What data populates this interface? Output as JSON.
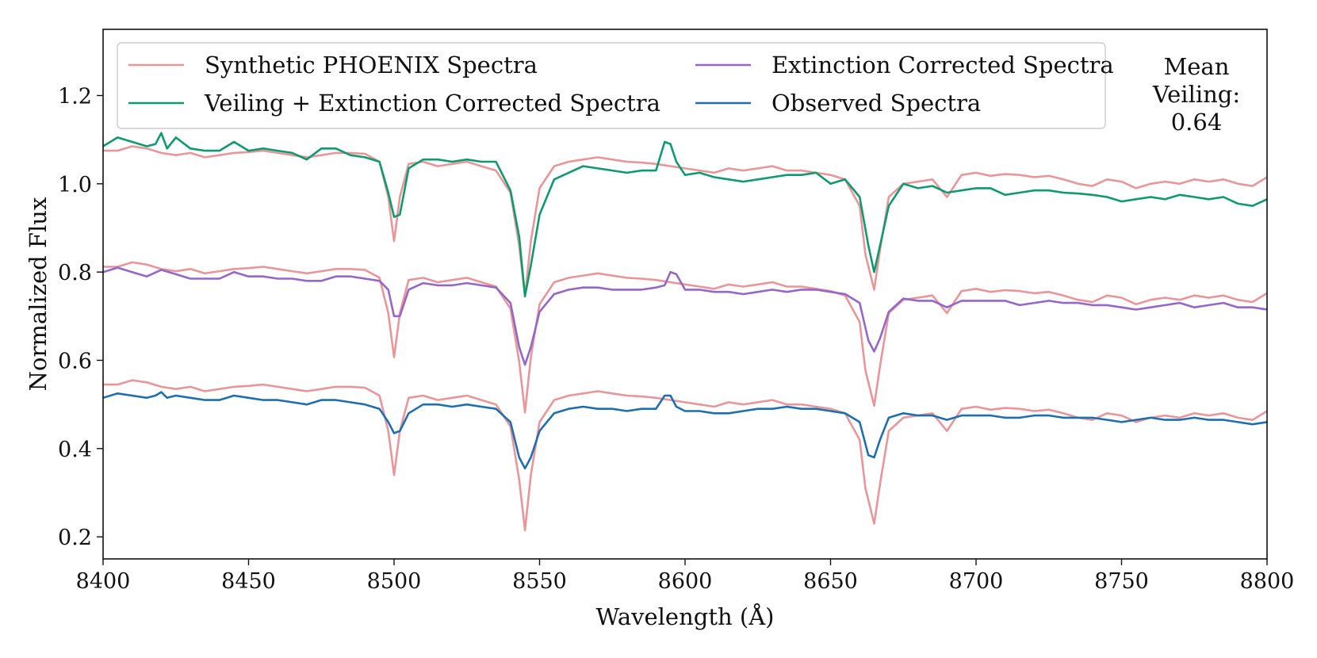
{
  "chart_data": {
    "type": "line",
    "title": "",
    "xlabel": "Wavelength (Å)",
    "ylabel": "Normalized Flux",
    "xlim": [
      8400,
      8800
    ],
    "ylim": [
      0.15,
      1.35
    ],
    "xticks": [
      {
        "value": 8400,
        "label": "8400"
      },
      {
        "value": 8450,
        "label": "8450"
      },
      {
        "value": 8500,
        "label": "8500"
      },
      {
        "value": 8550,
        "label": "8550"
      },
      {
        "value": 8600,
        "label": "8600"
      },
      {
        "value": 8650,
        "label": "8650"
      },
      {
        "value": 8700,
        "label": "8700"
      },
      {
        "value": 8750,
        "label": "8750"
      },
      {
        "value": 8800,
        "label": "8800"
      }
    ],
    "yticks": [
      {
        "value": 0.2,
        "label": "0.2"
      },
      {
        "value": 0.4,
        "label": "0.4"
      },
      {
        "value": 0.6,
        "label": "0.6"
      },
      {
        "value": 0.8,
        "label": "0.8"
      },
      {
        "value": 1.0,
        "label": "1.0"
      },
      {
        "value": 1.2,
        "label": "1.2"
      }
    ],
    "grid": false,
    "legend_position": "top-left",
    "annotation": {
      "line1": "Mean",
      "line2": "Veiling:",
      "line3": "0.64"
    },
    "template": {
      "x": [
        8400,
        8405,
        8410,
        8415,
        8420,
        8425,
        8430,
        8435,
        8440,
        8445,
        8450,
        8455,
        8460,
        8465,
        8470,
        8475,
        8480,
        8485,
        8490,
        8495,
        8498,
        8500,
        8502,
        8505,
        8510,
        8515,
        8520,
        8525,
        8530,
        8535,
        8540,
        8543,
        8545,
        8547,
        8550,
        8555,
        8560,
        8565,
        8570,
        8575,
        8580,
        8585,
        8590,
        8595,
        8600,
        8605,
        8610,
        8615,
        8620,
        8625,
        8630,
        8635,
        8640,
        8645,
        8650,
        8655,
        8660,
        8662,
        8665,
        8667,
        8670,
        8675,
        8680,
        8685,
        8690,
        8695,
        8700,
        8705,
        8710,
        8715,
        8720,
        8725,
        8730,
        8735,
        8740,
        8745,
        8750,
        8755,
        8760,
        8765,
        8770,
        8775,
        8780,
        8785,
        8790,
        8795,
        8800
      ],
      "y": [
        1.075,
        1.075,
        1.085,
        1.08,
        1.07,
        1.065,
        1.07,
        1.06,
        1.065,
        1.07,
        1.072,
        1.075,
        1.07,
        1.065,
        1.06,
        1.065,
        1.07,
        1.07,
        1.068,
        1.05,
        0.97,
        0.87,
        0.97,
        1.045,
        1.05,
        1.04,
        1.045,
        1.05,
        1.04,
        1.03,
        0.98,
        0.86,
        0.745,
        0.87,
        0.99,
        1.04,
        1.05,
        1.055,
        1.06,
        1.055,
        1.05,
        1.048,
        1.045,
        1.04,
        1.035,
        1.03,
        1.025,
        1.035,
        1.03,
        1.035,
        1.04,
        1.03,
        1.03,
        1.025,
        1.02,
        1.01,
        0.95,
        0.84,
        0.76,
        0.85,
        0.97,
        1.0,
        1.005,
        1.01,
        0.97,
        1.02,
        1.025,
        1.018,
        1.022,
        1.02,
        1.015,
        1.018,
        1.01,
        1.0,
        0.995,
        1.01,
        1.005,
        0.99,
        1.0,
        1.005,
        1.0,
        1.01,
        1.005,
        1.01,
        1.0,
        0.995,
        1.015
      ]
    },
    "offsets": {
      "veiling": 0.0,
      "extinction": -0.263,
      "observed": -0.53
    },
    "series": [
      {
        "name": "Synthetic PHOENIX Spectra",
        "color": "#e8969a",
        "offset_key": "template_rows",
        "values_from": "template"
      },
      {
        "name": "Veiling + Extinction Corrected Spectra",
        "color": "#0e9a6e",
        "x": [
          8400,
          8405,
          8410,
          8415,
          8418,
          8420,
          8422,
          8425,
          8430,
          8435,
          8440,
          8445,
          8450,
          8455,
          8460,
          8465,
          8470,
          8475,
          8480,
          8485,
          8490,
          8495,
          8498,
          8500,
          8502,
          8505,
          8510,
          8515,
          8520,
          8525,
          8530,
          8535,
          8540,
          8543,
          8545,
          8547,
          8550,
          8555,
          8560,
          8565,
          8570,
          8575,
          8580,
          8585,
          8590,
          8593,
          8595,
          8597,
          8600,
          8605,
          8610,
          8615,
          8620,
          8625,
          8630,
          8635,
          8640,
          8645,
          8650,
          8655,
          8660,
          8663,
          8665,
          8667,
          8670,
          8675,
          8680,
          8685,
          8690,
          8695,
          8700,
          8705,
          8710,
          8715,
          8720,
          8725,
          8730,
          8735,
          8740,
          8745,
          8750,
          8755,
          8760,
          8765,
          8770,
          8775,
          8780,
          8785,
          8790,
          8795,
          8800
        ],
        "y": [
          1.085,
          1.105,
          1.095,
          1.085,
          1.09,
          1.115,
          1.08,
          1.105,
          1.08,
          1.075,
          1.075,
          1.095,
          1.075,
          1.08,
          1.075,
          1.07,
          1.055,
          1.08,
          1.08,
          1.065,
          1.06,
          1.05,
          0.98,
          0.925,
          0.93,
          1.035,
          1.055,
          1.055,
          1.05,
          1.055,
          1.05,
          1.05,
          0.985,
          0.88,
          0.745,
          0.815,
          0.93,
          1.01,
          1.025,
          1.04,
          1.035,
          1.03,
          1.025,
          1.03,
          1.03,
          1.095,
          1.09,
          1.05,
          1.02,
          1.025,
          1.015,
          1.01,
          1.005,
          1.01,
          1.015,
          1.02,
          1.02,
          1.025,
          1.0,
          1.01,
          0.97,
          0.86,
          0.8,
          0.86,
          0.95,
          1.0,
          0.99,
          0.995,
          0.98,
          0.985,
          0.99,
          0.99,
          0.975,
          0.98,
          0.985,
          0.985,
          0.98,
          0.978,
          0.975,
          0.97,
          0.96,
          0.965,
          0.97,
          0.965,
          0.975,
          0.97,
          0.965,
          0.97,
          0.955,
          0.95,
          0.965
        ]
      },
      {
        "name": "Extinction Corrected Spectra",
        "color": "#9467c8",
        "x": [
          8400,
          8405,
          8410,
          8415,
          8420,
          8425,
          8430,
          8435,
          8440,
          8445,
          8450,
          8455,
          8460,
          8465,
          8470,
          8475,
          8480,
          8485,
          8490,
          8495,
          8498,
          8500,
          8502,
          8505,
          8510,
          8515,
          8520,
          8525,
          8530,
          8535,
          8540,
          8543,
          8545,
          8547,
          8550,
          8555,
          8560,
          8565,
          8570,
          8575,
          8580,
          8585,
          8590,
          8593,
          8595,
          8597,
          8600,
          8605,
          8610,
          8615,
          8620,
          8625,
          8630,
          8635,
          8640,
          8645,
          8650,
          8655,
          8660,
          8663,
          8665,
          8667,
          8670,
          8675,
          8680,
          8685,
          8690,
          8695,
          8700,
          8705,
          8710,
          8715,
          8720,
          8725,
          8730,
          8735,
          8740,
          8745,
          8750,
          8755,
          8760,
          8765,
          8770,
          8775,
          8780,
          8785,
          8790,
          8795,
          8800
        ],
        "y": [
          0.8,
          0.81,
          0.8,
          0.79,
          0.805,
          0.795,
          0.785,
          0.785,
          0.785,
          0.8,
          0.79,
          0.79,
          0.785,
          0.785,
          0.78,
          0.78,
          0.79,
          0.79,
          0.785,
          0.78,
          0.76,
          0.7,
          0.7,
          0.76,
          0.775,
          0.77,
          0.77,
          0.775,
          0.77,
          0.765,
          0.73,
          0.63,
          0.59,
          0.63,
          0.71,
          0.75,
          0.76,
          0.765,
          0.765,
          0.76,
          0.76,
          0.76,
          0.765,
          0.77,
          0.8,
          0.795,
          0.76,
          0.76,
          0.755,
          0.755,
          0.75,
          0.755,
          0.76,
          0.755,
          0.76,
          0.76,
          0.755,
          0.75,
          0.73,
          0.645,
          0.62,
          0.65,
          0.71,
          0.74,
          0.735,
          0.735,
          0.72,
          0.735,
          0.735,
          0.735,
          0.735,
          0.725,
          0.73,
          0.735,
          0.73,
          0.73,
          0.725,
          0.725,
          0.72,
          0.715,
          0.72,
          0.725,
          0.73,
          0.72,
          0.725,
          0.73,
          0.72,
          0.72,
          0.715
        ]
      },
      {
        "name": "Observed Spectra",
        "color": "#1f6fae",
        "x": [
          8400,
          8405,
          8410,
          8415,
          8418,
          8420,
          8422,
          8425,
          8430,
          8435,
          8440,
          8445,
          8450,
          8455,
          8460,
          8465,
          8470,
          8475,
          8480,
          8485,
          8490,
          8495,
          8498,
          8500,
          8502,
          8505,
          8510,
          8515,
          8520,
          8525,
          8530,
          8535,
          8540,
          8543,
          8545,
          8547,
          8550,
          8555,
          8560,
          8565,
          8570,
          8575,
          8580,
          8585,
          8590,
          8593,
          8595,
          8597,
          8600,
          8605,
          8610,
          8615,
          8620,
          8625,
          8630,
          8635,
          8640,
          8645,
          8650,
          8655,
          8660,
          8663,
          8665,
          8667,
          8670,
          8675,
          8680,
          8685,
          8690,
          8695,
          8700,
          8705,
          8710,
          8715,
          8720,
          8725,
          8730,
          8735,
          8740,
          8745,
          8750,
          8755,
          8760,
          8765,
          8770,
          8775,
          8780,
          8785,
          8790,
          8795,
          8800
        ],
        "y": [
          0.515,
          0.525,
          0.52,
          0.515,
          0.52,
          0.528,
          0.515,
          0.52,
          0.515,
          0.51,
          0.51,
          0.52,
          0.515,
          0.51,
          0.51,
          0.505,
          0.5,
          0.51,
          0.51,
          0.505,
          0.5,
          0.49,
          0.46,
          0.435,
          0.44,
          0.48,
          0.5,
          0.5,
          0.495,
          0.5,
          0.495,
          0.49,
          0.46,
          0.38,
          0.355,
          0.38,
          0.44,
          0.48,
          0.49,
          0.495,
          0.49,
          0.49,
          0.485,
          0.49,
          0.49,
          0.52,
          0.52,
          0.495,
          0.485,
          0.485,
          0.48,
          0.48,
          0.485,
          0.49,
          0.49,
          0.495,
          0.49,
          0.49,
          0.485,
          0.48,
          0.46,
          0.385,
          0.38,
          0.42,
          0.47,
          0.48,
          0.475,
          0.475,
          0.465,
          0.475,
          0.475,
          0.475,
          0.47,
          0.47,
          0.475,
          0.475,
          0.47,
          0.47,
          0.47,
          0.465,
          0.46,
          0.465,
          0.47,
          0.465,
          0.465,
          0.47,
          0.465,
          0.465,
          0.46,
          0.455,
          0.46
        ]
      }
    ]
  },
  "legend": {
    "items": [
      {
        "label": "Synthetic PHOENIX Spectra",
        "color": "#e8969a"
      },
      {
        "label": "Extinction Corrected Spectra",
        "color": "#9467c8"
      },
      {
        "label": "Veiling + Extinction Corrected Spectra",
        "color": "#0e9a6e"
      },
      {
        "label": "Observed Spectra",
        "color": "#1f6fae"
      }
    ]
  }
}
